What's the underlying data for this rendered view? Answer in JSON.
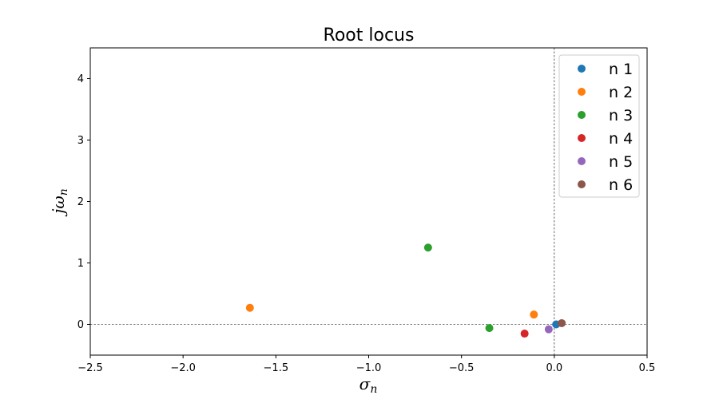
{
  "chart_data": {
    "type": "scatter",
    "title": "Root locus",
    "xlabel": {
      "main": "σ",
      "sub": "n"
    },
    "ylabel": {
      "main": "jω",
      "sub": "n"
    },
    "xlim": [
      -2.5,
      0.5
    ],
    "ylim": [
      -0.5,
      4.5
    ],
    "xticks": [
      -2.5,
      -2.0,
      -1.5,
      -1.0,
      -0.5,
      0.0,
      0.5
    ],
    "xtick_labels": [
      "−2.5",
      "−2.0",
      "−1.5",
      "−1.0",
      "−0.5",
      "0.0",
      "0.5"
    ],
    "yticks": [
      0,
      1,
      2,
      3,
      4
    ],
    "ytick_labels": [
      "0",
      "1",
      "2",
      "3",
      "4"
    ],
    "reference_lines": {
      "x": 0,
      "y": 0,
      "style": "dashed"
    },
    "grid": false,
    "legend_position": "top-right",
    "series": [
      {
        "name": "n 1",
        "color": "#1f77b4",
        "points": [
          [
            0.01,
            0.0
          ]
        ]
      },
      {
        "name": "n 2",
        "color": "#ff7f0e",
        "points": [
          [
            -1.64,
            0.27
          ],
          [
            -0.11,
            0.16
          ]
        ]
      },
      {
        "name": "n 3",
        "color": "#2ca02c",
        "points": [
          [
            -0.68,
            1.25
          ],
          [
            -0.35,
            -0.06
          ]
        ]
      },
      {
        "name": "n 4",
        "color": "#d62728",
        "points": [
          [
            -0.16,
            -0.15
          ]
        ]
      },
      {
        "name": "n 5",
        "color": "#9467bd",
        "points": [
          [
            -0.03,
            -0.08
          ]
        ]
      },
      {
        "name": "n 6",
        "color": "#8c564b",
        "points": [
          [
            0.04,
            0.02
          ]
        ]
      }
    ]
  }
}
